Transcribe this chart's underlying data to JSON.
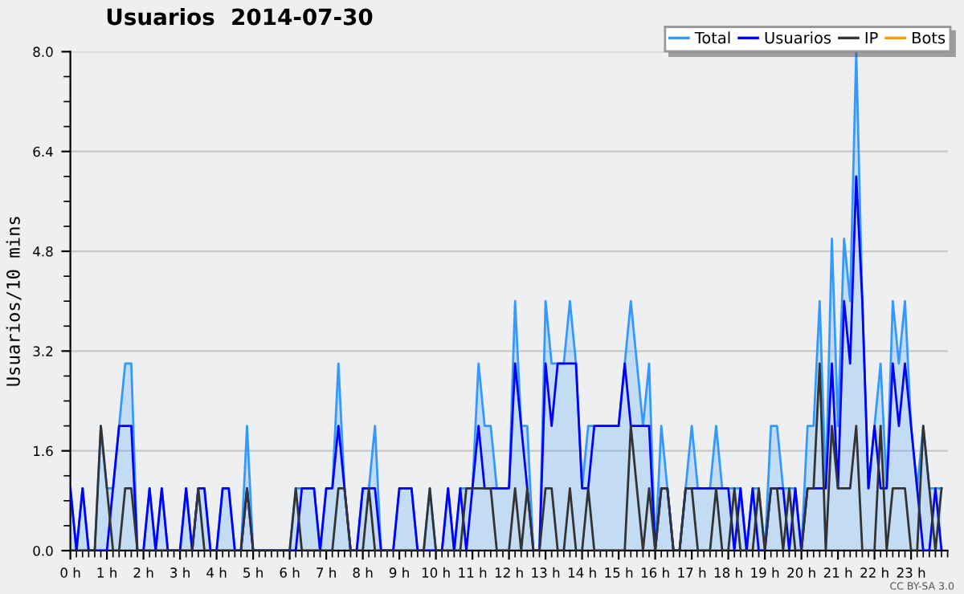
{
  "chart_data": {
    "type": "line",
    "title": "Usuarios  2014-07-30",
    "ylabel": "Usuarios/10 mins",
    "annotations": [
      "CC BY-SA 3.0"
    ],
    "x": [
      0,
      0.1667,
      0.3333,
      0.5,
      0.6667,
      0.8333,
      1,
      1.1667,
      1.3333,
      1.5,
      1.6667,
      1.8333,
      2,
      2.1667,
      2.3333,
      2.5,
      2.6667,
      2.8333,
      3,
      3.1667,
      3.3333,
      3.5,
      3.6667,
      3.8333,
      4,
      4.1667,
      4.3333,
      4.5,
      4.6667,
      4.8333,
      5,
      5.1667,
      5.3333,
      5.5,
      5.6667,
      5.8333,
      6,
      6.1667,
      6.3333,
      6.5,
      6.6667,
      6.8333,
      7,
      7.1667,
      7.3333,
      7.5,
      7.6667,
      7.8333,
      8,
      8.1667,
      8.3333,
      8.5,
      8.6667,
      8.8333,
      9,
      9.1667,
      9.3333,
      9.5,
      9.6667,
      9.8333,
      10,
      10.1667,
      10.3333,
      10.5,
      10.6667,
      10.8333,
      11,
      11.1667,
      11.3333,
      11.5,
      11.6667,
      11.8333,
      12,
      12.1667,
      12.3333,
      12.5,
      12.6667,
      12.8333,
      13,
      13.1667,
      13.3333,
      13.5,
      13.6667,
      13.8333,
      14,
      14.1667,
      14.3333,
      14.5,
      14.6667,
      14.8333,
      15,
      15.1667,
      15.3333,
      15.5,
      15.6667,
      15.8333,
      16,
      16.1667,
      16.3333,
      16.5,
      16.6667,
      16.8333,
      17,
      17.1667,
      17.3333,
      17.5,
      17.6667,
      17.8333,
      18,
      18.1667,
      18.3333,
      18.5,
      18.6667,
      18.8333,
      19,
      19.1667,
      19.3333,
      19.5,
      19.6667,
      19.8333,
      20,
      20.1667,
      20.3333,
      20.5,
      20.6667,
      20.8333,
      21,
      21.1667,
      21.3333,
      21.5,
      21.6667,
      21.8333,
      22,
      22.1667,
      22.3333,
      22.5,
      22.6667,
      22.8333,
      23,
      23.1667,
      23.3333,
      23.5,
      23.6667,
      23.8333
    ],
    "series": [
      {
        "name": "Total",
        "type": "area",
        "color": "#3399ff",
        "values": [
          1,
          0,
          1,
          0,
          0,
          2,
          1,
          1,
          2,
          3,
          3,
          0,
          0,
          1,
          0,
          1,
          0,
          0,
          0,
          1,
          0,
          1,
          1,
          0,
          0,
          1,
          1,
          0,
          0,
          2,
          0,
          0,
          0,
          0,
          0,
          0,
          0,
          1,
          1,
          1,
          1,
          0,
          1,
          1,
          3,
          1,
          0,
          0,
          1,
          1,
          2,
          0,
          0,
          0,
          1,
          1,
          1,
          0,
          0,
          1,
          0,
          0,
          1,
          0,
          1,
          1,
          1,
          3,
          2,
          2,
          1,
          1,
          1,
          4,
          2,
          2,
          0,
          0,
          4,
          3,
          3,
          3,
          4,
          3,
          1,
          2,
          2,
          2,
          2,
          2,
          2,
          3,
          4,
          3,
          2,
          3,
          0,
          2,
          1,
          0,
          0,
          1,
          2,
          1,
          1,
          1,
          2,
          1,
          1,
          1,
          1,
          0,
          1,
          1,
          0,
          2,
          2,
          1,
          1,
          1,
          0,
          2,
          2,
          4,
          1,
          5,
          2,
          5,
          4,
          8,
          4,
          1,
          2,
          3,
          1,
          4,
          3,
          4,
          2,
          1,
          2,
          1,
          1,
          1
        ]
      },
      {
        "name": "Usuarios",
        "color": "#0000ff",
        "values": [
          1,
          0,
          1,
          0,
          0,
          0,
          0,
          1,
          2,
          2,
          2,
          0,
          0,
          1,
          0,
          1,
          0,
          0,
          0,
          1,
          0,
          1,
          1,
          0,
          0,
          1,
          1,
          0,
          0,
          1,
          0,
          0,
          0,
          0,
          0,
          0,
          0,
          0,
          1,
          1,
          1,
          0,
          1,
          1,
          2,
          1,
          0,
          0,
          1,
          1,
          1,
          0,
          0,
          0,
          1,
          1,
          1,
          0,
          0,
          0,
          0,
          0,
          1,
          0,
          1,
          0,
          1,
          2,
          1,
          1,
          1,
          1,
          1,
          3,
          2,
          1,
          0,
          0,
          3,
          2,
          3,
          3,
          3,
          3,
          1,
          1,
          2,
          2,
          2,
          2,
          2,
          3,
          2,
          2,
          2,
          2,
          0,
          1,
          1,
          0,
          0,
          1,
          1,
          1,
          1,
          1,
          1,
          1,
          1,
          0,
          1,
          0,
          1,
          0,
          0,
          1,
          1,
          1,
          0,
          1,
          0,
          1,
          1,
          1,
          1,
          3,
          1,
          4,
          3,
          6,
          4,
          1,
          2,
          1,
          1,
          3,
          2,
          3,
          2,
          1,
          0,
          0,
          1,
          0
        ]
      },
      {
        "name": "IP",
        "color": "#333333",
        "values": [
          0,
          0,
          0,
          0,
          0,
          2,
          1,
          0,
          0,
          1,
          1,
          0,
          0,
          0,
          0,
          0,
          0,
          0,
          0,
          0,
          0,
          1,
          0,
          0,
          0,
          0,
          0,
          0,
          0,
          1,
          0,
          0,
          0,
          0,
          0,
          0,
          0,
          1,
          0,
          0,
          0,
          0,
          0,
          0,
          1,
          1,
          0,
          0,
          0,
          1,
          0,
          0,
          0,
          0,
          0,
          0,
          0,
          0,
          0,
          1,
          0,
          0,
          0,
          0,
          0,
          1,
          1,
          1,
          1,
          1,
          0,
          0,
          0,
          1,
          0,
          1,
          0,
          0,
          1,
          1,
          0,
          0,
          1,
          0,
          0,
          1,
          0,
          0,
          0,
          0,
          0,
          0,
          2,
          1,
          0,
          1,
          0,
          1,
          1,
          0,
          0,
          1,
          1,
          0,
          0,
          0,
          1,
          0,
          0,
          1,
          0,
          0,
          0,
          1,
          0,
          1,
          1,
          0,
          1,
          0,
          0,
          1,
          1,
          3,
          0,
          2,
          1,
          1,
          1,
          2,
          0,
          0,
          0,
          2,
          0,
          1,
          1,
          1,
          0,
          0,
          2,
          1,
          0,
          1
        ]
      },
      {
        "name": "Bots",
        "color": "#ff9900",
        "values": [
          null,
          null,
          null,
          null,
          null,
          null,
          null,
          null,
          null,
          null,
          null,
          null,
          null,
          null,
          null,
          null,
          null,
          null,
          null,
          null,
          null,
          null,
          null,
          null,
          null,
          null,
          null,
          null,
          null,
          null,
          null,
          null,
          null,
          null,
          null,
          null,
          null,
          null,
          null,
          null,
          null,
          null,
          null,
          null,
          null,
          null,
          null,
          null,
          null,
          null,
          null,
          null,
          null,
          null,
          null,
          null,
          null,
          null,
          null,
          null,
          null,
          null,
          null,
          null,
          null,
          null,
          null,
          null,
          null,
          null,
          null,
          null,
          null,
          null,
          null,
          null,
          null,
          null,
          null,
          null,
          null,
          null,
          null,
          null,
          null,
          null,
          null,
          null,
          null,
          null,
          null,
          null,
          null,
          null,
          null,
          null,
          null,
          null,
          null,
          null,
          null,
          null,
          null,
          null,
          null,
          null,
          null,
          null,
          null,
          null,
          null,
          null,
          null,
          null,
          null,
          null,
          null,
          null,
          null,
          null,
          null,
          null,
          null,
          null,
          null,
          null,
          null,
          null,
          null,
          null,
          null,
          null,
          null,
          null,
          null,
          null,
          null,
          null,
          null,
          null,
          null,
          null,
          null,
          null
        ]
      }
    ],
    "xlim": [
      0,
      24
    ],
    "xticks": [
      {
        "value": 0,
        "label": "0 h"
      },
      {
        "value": 1,
        "label": "1 h"
      },
      {
        "value": 2,
        "label": "2 h"
      },
      {
        "value": 3,
        "label": "3 h"
      },
      {
        "value": 4,
        "label": "4 h"
      },
      {
        "value": 5,
        "label": "5 h"
      },
      {
        "value": 6,
        "label": "6 h"
      },
      {
        "value": 7,
        "label": "7 h"
      },
      {
        "value": 8,
        "label": "8 h"
      },
      {
        "value": 9,
        "label": "9 h"
      },
      {
        "value": 10,
        "label": "10 h"
      },
      {
        "value": 11,
        "label": "11 h"
      },
      {
        "value": 12,
        "label": "12 h"
      },
      {
        "value": 13,
        "label": "13 h"
      },
      {
        "value": 14,
        "label": "14 h"
      },
      {
        "value": 15,
        "label": "15 h"
      },
      {
        "value": 16,
        "label": "16 h"
      },
      {
        "value": 17,
        "label": "17 h"
      },
      {
        "value": 18,
        "label": "18 h"
      },
      {
        "value": 19,
        "label": "19 h"
      },
      {
        "value": 20,
        "label": "20 h"
      },
      {
        "value": 21,
        "label": "21 h"
      },
      {
        "value": 22,
        "label": "22 h"
      },
      {
        "value": 23,
        "label": "23 h"
      }
    ],
    "ylim": [
      0,
      8
    ],
    "yticks": [
      {
        "value": 0,
        "label": "0.0"
      },
      {
        "value": 0.4,
        "label": null
      },
      {
        "value": 0.8,
        "label": null
      },
      {
        "value": 1.2,
        "label": null
      },
      {
        "value": 1.6,
        "label": "1.6"
      },
      {
        "value": 2.0,
        "label": null
      },
      {
        "value": 2.4,
        "label": null
      },
      {
        "value": 2.8,
        "label": null
      },
      {
        "value": 3.2,
        "label": "3.2"
      },
      {
        "value": 3.6,
        "label": null
      },
      {
        "value": 4.0,
        "label": null
      },
      {
        "value": 4.4,
        "label": null
      },
      {
        "value": 4.8,
        "label": "4.8"
      },
      {
        "value": 5.2,
        "label": null
      },
      {
        "value": 5.6,
        "label": null
      },
      {
        "value": 6.0,
        "label": null
      },
      {
        "value": 6.4,
        "label": "6.4"
      },
      {
        "value": 6.8,
        "label": null
      },
      {
        "value": 7.2,
        "label": null
      },
      {
        "value": 7.6,
        "label": null
      },
      {
        "value": 8.0,
        "label": "8.0"
      }
    ],
    "grid": "y",
    "legend": "top right"
  }
}
